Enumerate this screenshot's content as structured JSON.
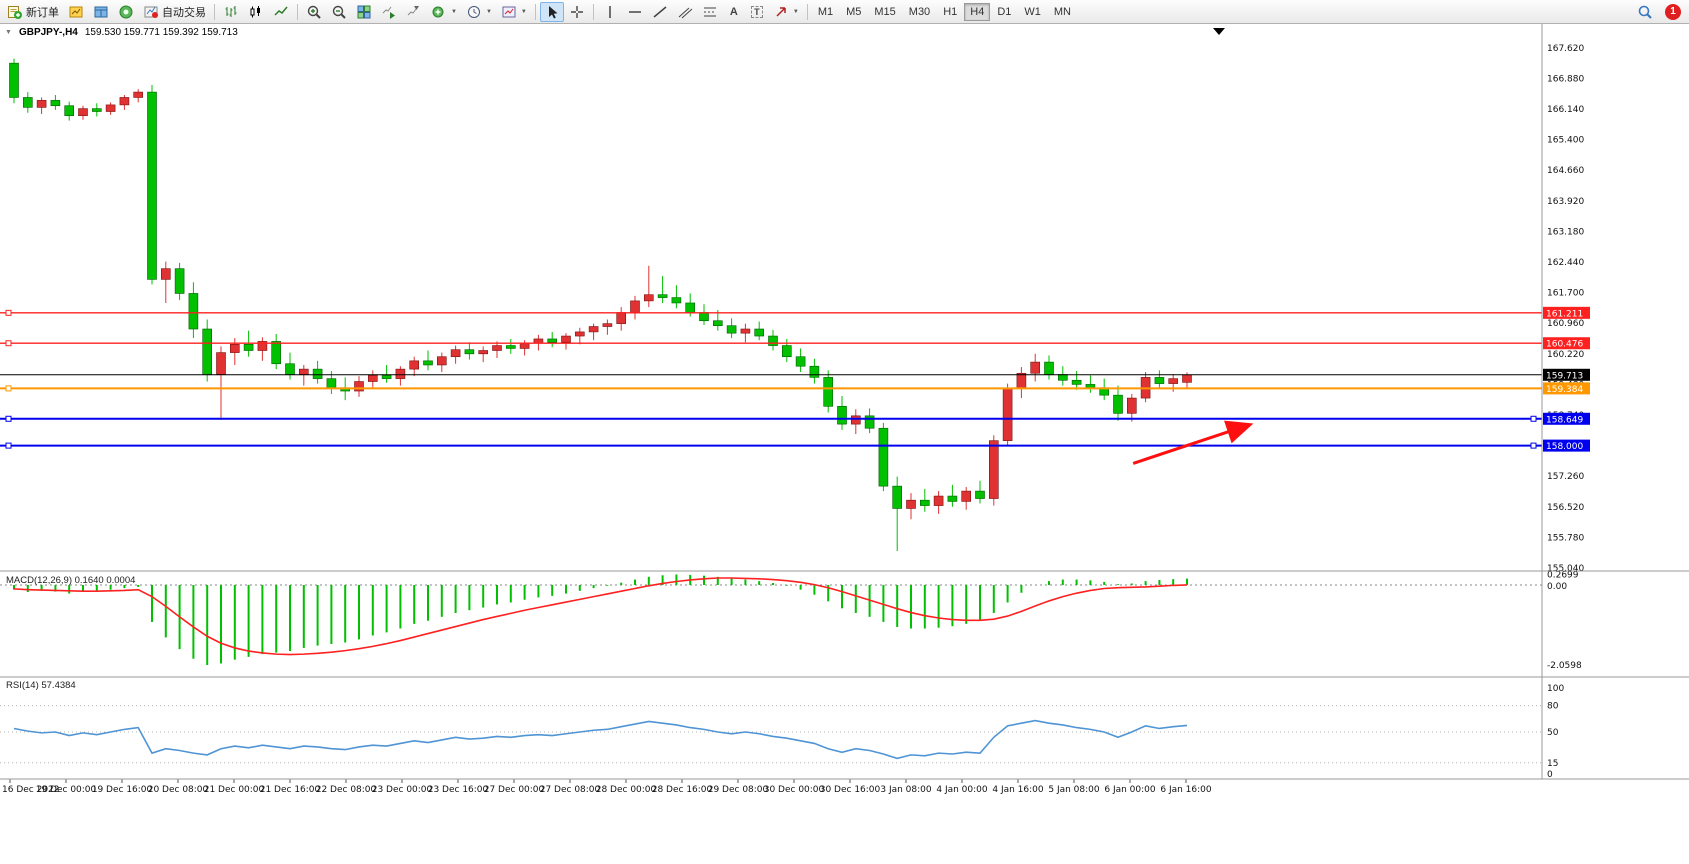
{
  "icons": {
    "collapse": "▼",
    "caret": "▼",
    "text_tool": "A",
    "label_tool": "T"
  },
  "toolbar": {
    "buttons": {
      "new_order": "新订单",
      "autotrading": "自动交易"
    },
    "timeframes": [
      "M1",
      "M5",
      "M15",
      "M30",
      "H1",
      "H4",
      "D1",
      "W1",
      "MN"
    ],
    "active_timeframe": "H4",
    "notification_badge": "1"
  },
  "chart_header": {
    "symbol_period": "GBPJPY-,H4",
    "ohlc_text": "159.530 159.771 159.392 159.713"
  },
  "indicator_labels": {
    "macd": "MACD(12,26,9) 0.1640 0.0004",
    "rsi": "RSI(14) 57.4384"
  },
  "colors": {
    "bull": "#e03232",
    "bull_edge": "#7a1010",
    "bear": "#00c000",
    "bear_edge": "#006000",
    "macd_hist": "#00c000",
    "macd_signal": "#ff2020",
    "rsi_line": "#4f94d4",
    "hline_red": "#ff2020",
    "hline_blue": "#0000ee",
    "hline_orange": "#ff9800",
    "price_line": "#000000",
    "arrow": "#ff1010"
  },
  "chart_data": {
    "type": "candlestick",
    "symbol": "GBPJPY-",
    "period": "H4",
    "current_bar": {
      "open": "159.530",
      "high": "159.771",
      "low": "159.392",
      "close": "159.713"
    },
    "price_axis_labels": [
      "167.620",
      "166.880",
      "166.140",
      "165.400",
      "164.660",
      "163.920",
      "163.180",
      "162.440",
      "161.700",
      "160.960",
      "160.220",
      "159.480",
      "158.740",
      "158.000",
      "157.260",
      "156.520",
      "155.780",
      "155.040"
    ],
    "time_axis_labels": [
      "16 Dec 2022",
      "19 Dec 00:00",
      "19 Dec 16:00",
      "20 Dec 08:00",
      "21 Dec 00:00",
      "21 Dec 16:00",
      "22 Dec 08:00",
      "23 Dec 00:00",
      "23 Dec 16:00",
      "27 Dec 00:00",
      "27 Dec 08:00",
      "28 Dec 00:00",
      "28 Dec 16:00",
      "29 Dec 08:00",
      "30 Dec 00:00",
      "30 Dec 16:00",
      "3 Jan 08:00",
      "4 Jan 00:00",
      "4 Jan 16:00",
      "5 Jan 08:00",
      "6 Jan 00:00",
      "6 Jan 16:00"
    ],
    "candles_ohlc": [
      [
        167.25,
        167.36,
        166.28,
        166.42
      ],
      [
        166.42,
        166.55,
        166.05,
        166.18
      ],
      [
        166.18,
        166.42,
        166.02,
        166.35
      ],
      [
        166.35,
        166.48,
        166.12,
        166.22
      ],
      [
        166.22,
        166.32,
        165.86,
        165.98
      ],
      [
        165.98,
        166.22,
        165.88,
        166.15
      ],
      [
        166.15,
        166.28,
        165.96,
        166.08
      ],
      [
        166.08,
        166.3,
        166.0,
        166.24
      ],
      [
        166.24,
        166.48,
        166.12,
        166.42
      ],
      [
        166.42,
        166.62,
        166.3,
        166.55
      ],
      [
        166.55,
        166.72,
        161.9,
        162.02
      ],
      [
        162.02,
        162.45,
        161.45,
        162.28
      ],
      [
        162.28,
        162.42,
        161.52,
        161.68
      ],
      [
        161.68,
        161.95,
        160.6,
        160.82
      ],
      [
        160.82,
        161.05,
        159.55,
        159.72
      ],
      [
        159.72,
        160.4,
        158.62,
        160.25
      ],
      [
        160.25,
        160.6,
        159.95,
        160.45
      ],
      [
        160.45,
        160.78,
        160.15,
        160.3
      ],
      [
        160.3,
        160.62,
        160.05,
        160.52
      ],
      [
        160.52,
        160.7,
        159.85,
        159.98
      ],
      [
        159.98,
        160.25,
        159.6,
        159.72
      ],
      [
        159.72,
        159.95,
        159.45,
        159.85
      ],
      [
        159.85,
        160.05,
        159.5,
        159.62
      ],
      [
        159.62,
        159.8,
        159.25,
        159.4
      ],
      [
        159.4,
        159.65,
        159.1,
        159.32
      ],
      [
        159.32,
        159.68,
        159.18,
        159.55
      ],
      [
        159.55,
        159.82,
        159.38,
        159.7
      ],
      [
        159.7,
        159.95,
        159.52,
        159.62
      ],
      [
        159.62,
        159.92,
        159.45,
        159.85
      ],
      [
        159.85,
        160.15,
        159.68,
        160.05
      ],
      [
        160.05,
        160.3,
        159.82,
        159.95
      ],
      [
        159.95,
        160.25,
        159.78,
        160.15
      ],
      [
        160.15,
        160.42,
        159.98,
        160.32
      ],
      [
        160.32,
        160.5,
        160.08,
        160.22
      ],
      [
        160.22,
        160.4,
        160.02,
        160.3
      ],
      [
        160.3,
        160.52,
        160.12,
        160.42
      ],
      [
        160.42,
        160.58,
        160.22,
        160.35
      ],
      [
        160.35,
        160.55,
        160.18,
        160.48
      ],
      [
        160.48,
        160.68,
        160.3,
        160.58
      ],
      [
        160.58,
        160.75,
        160.38,
        160.5
      ],
      [
        160.5,
        160.72,
        160.32,
        160.65
      ],
      [
        160.65,
        160.85,
        160.45,
        160.75
      ],
      [
        160.75,
        160.95,
        160.55,
        160.88
      ],
      [
        160.88,
        161.05,
        160.68,
        160.95
      ],
      [
        160.95,
        161.35,
        160.78,
        161.22
      ],
      [
        161.22,
        161.62,
        161.05,
        161.5
      ],
      [
        161.5,
        162.35,
        161.35,
        161.65
      ],
      [
        161.65,
        162.1,
        161.45,
        161.58
      ],
      [
        161.58,
        161.88,
        161.32,
        161.45
      ],
      [
        161.45,
        161.68,
        161.12,
        161.22
      ],
      [
        161.22,
        161.42,
        160.92,
        161.02
      ],
      [
        161.02,
        161.28,
        160.78,
        160.9
      ],
      [
        160.9,
        161.08,
        160.6,
        160.72
      ],
      [
        160.72,
        160.95,
        160.5,
        160.82
      ],
      [
        160.82,
        161.0,
        160.55,
        160.65
      ],
      [
        160.65,
        160.8,
        160.3,
        160.42
      ],
      [
        160.42,
        160.58,
        160.02,
        160.15
      ],
      [
        160.15,
        160.35,
        159.78,
        159.92
      ],
      [
        159.92,
        160.1,
        159.5,
        159.65
      ],
      [
        159.65,
        159.82,
        158.8,
        158.95
      ],
      [
        158.95,
        159.2,
        158.38,
        158.52
      ],
      [
        158.52,
        158.88,
        158.28,
        158.72
      ],
      [
        158.72,
        158.9,
        158.3,
        158.42
      ],
      [
        158.42,
        158.55,
        156.9,
        157.02
      ],
      [
        157.02,
        157.25,
        155.45,
        156.48
      ],
      [
        156.48,
        156.85,
        156.22,
        156.68
      ],
      [
        156.68,
        156.95,
        156.4,
        156.55
      ],
      [
        156.55,
        156.9,
        156.35,
        156.78
      ],
      [
        156.78,
        157.05,
        156.52,
        156.65
      ],
      [
        156.65,
        157.0,
        156.45,
        156.9
      ],
      [
        156.9,
        157.15,
        156.6,
        156.72
      ],
      [
        156.72,
        158.25,
        156.55,
        158.12
      ],
      [
        158.12,
        159.5,
        158.0,
        159.38
      ],
      [
        159.38,
        159.9,
        159.15,
        159.75
      ],
      [
        159.75,
        160.22,
        159.55,
        160.02
      ],
      [
        160.02,
        160.18,
        159.6,
        159.72
      ],
      [
        159.72,
        159.92,
        159.45,
        159.58
      ],
      [
        159.58,
        159.8,
        159.35,
        159.48
      ],
      [
        159.48,
        159.7,
        159.28,
        159.4
      ],
      [
        159.4,
        159.62,
        159.1,
        159.22
      ],
      [
        159.22,
        159.45,
        158.6,
        158.78
      ],
      [
        158.78,
        159.25,
        158.58,
        159.15
      ],
      [
        159.15,
        159.78,
        159.05,
        159.65
      ],
      [
        159.65,
        159.82,
        159.38,
        159.5
      ],
      [
        159.5,
        159.73,
        159.3,
        159.62
      ],
      [
        159.53,
        159.771,
        159.392,
        159.713
      ]
    ],
    "horizontal_lines": [
      {
        "price": 161.211,
        "label": "161.211",
        "color": "red"
      },
      {
        "price": 160.476,
        "label": "160.476",
        "color": "red"
      },
      {
        "price": 159.713,
        "label": "159.713",
        "color": "black",
        "role": "current-price"
      },
      {
        "price": 159.384,
        "label": "159.384",
        "color": "orange"
      },
      {
        "price": 158.649,
        "label": "158.649",
        "color": "blue"
      },
      {
        "price": 158.0,
        "label": "158.000",
        "color": "blue"
      }
    ],
    "arrow_object": {
      "tail": {
        "bar": 81.1,
        "price": 157.57
      },
      "head": {
        "bar": 89.4,
        "price": 158.49
      },
      "color": "red"
    },
    "macd": {
      "name": "MACD(12,26,9)",
      "main_value": "0.1640",
      "signal_value": "0.0004",
      "axis_labels": [
        "0.2699",
        "0.00",
        "-2.0598"
      ],
      "max": 0.2699,
      "min": -2.0598,
      "histogram": [
        -0.12,
        -0.18,
        -0.15,
        -0.17,
        -0.22,
        -0.18,
        -0.16,
        -0.12,
        -0.08,
        -0.05,
        -0.95,
        -1.35,
        -1.65,
        -1.9,
        -2.06,
        -2.02,
        -1.92,
        -1.85,
        -1.78,
        -1.74,
        -1.7,
        -1.62,
        -1.56,
        -1.52,
        -1.48,
        -1.4,
        -1.3,
        -1.22,
        -1.12,
        -1.0,
        -0.92,
        -0.82,
        -0.72,
        -0.65,
        -0.58,
        -0.5,
        -0.45,
        -0.38,
        -0.32,
        -0.28,
        -0.22,
        -0.15,
        -0.08,
        -0.02,
        0.06,
        0.14,
        0.21,
        0.25,
        0.27,
        0.26,
        0.24,
        0.21,
        0.17,
        0.14,
        0.1,
        0.05,
        -0.02,
        -0.12,
        -0.25,
        -0.42,
        -0.6,
        -0.72,
        -0.82,
        -0.95,
        -1.08,
        -1.12,
        -1.12,
        -1.1,
        -1.06,
        -1.0,
        -0.92,
        -0.72,
        -0.45,
        -0.2,
        0.0,
        0.1,
        0.14,
        0.14,
        0.12,
        0.08,
        0.02,
        0.04,
        0.1,
        0.13,
        0.15,
        0.164
      ],
      "signal": [
        -0.1,
        -0.12,
        -0.13,
        -0.14,
        -0.15,
        -0.16,
        -0.16,
        -0.15,
        -0.14,
        -0.12,
        -0.3,
        -0.55,
        -0.82,
        -1.08,
        -1.32,
        -1.5,
        -1.62,
        -1.7,
        -1.75,
        -1.78,
        -1.79,
        -1.78,
        -1.76,
        -1.73,
        -1.69,
        -1.64,
        -1.58,
        -1.51,
        -1.43,
        -1.34,
        -1.25,
        -1.16,
        -1.07,
        -0.98,
        -0.89,
        -0.81,
        -0.73,
        -0.65,
        -0.58,
        -0.51,
        -0.44,
        -0.37,
        -0.3,
        -0.23,
        -0.16,
        -0.09,
        -0.02,
        0.04,
        0.09,
        0.13,
        0.16,
        0.18,
        0.18,
        0.17,
        0.16,
        0.14,
        0.11,
        0.07,
        0.01,
        -0.07,
        -0.17,
        -0.28,
        -0.39,
        -0.5,
        -0.61,
        -0.71,
        -0.79,
        -0.85,
        -0.89,
        -0.91,
        -0.91,
        -0.88,
        -0.8,
        -0.68,
        -0.54,
        -0.41,
        -0.3,
        -0.21,
        -0.14,
        -0.09,
        -0.07,
        -0.06,
        -0.05,
        -0.03,
        -0.01,
        0.0004
      ]
    },
    "rsi": {
      "name": "RSI(14)",
      "value": "57.4384",
      "axis_labels": [
        "100",
        "80",
        "50",
        "15",
        "0"
      ],
      "levels": [
        80,
        50,
        15
      ],
      "values": [
        54,
        51,
        49,
        50,
        46,
        49,
        47,
        50,
        53,
        55,
        26,
        31,
        29,
        26,
        24,
        31,
        34,
        32,
        35,
        33,
        31,
        34,
        33,
        31,
        30,
        33,
        35,
        34,
        37,
        40,
        38,
        41,
        44,
        42,
        43,
        45,
        44,
        46,
        47,
        46,
        48,
        50,
        52,
        53,
        56,
        59,
        62,
        60,
        58,
        55,
        53,
        50,
        48,
        50,
        48,
        45,
        43,
        40,
        37,
        31,
        27,
        31,
        29,
        25,
        20,
        24,
        23,
        26,
        25,
        27,
        26,
        44,
        57,
        60,
        63,
        60,
        58,
        55,
        53,
        50,
        44,
        50,
        57,
        54,
        56,
        57.4384
      ]
    }
  }
}
